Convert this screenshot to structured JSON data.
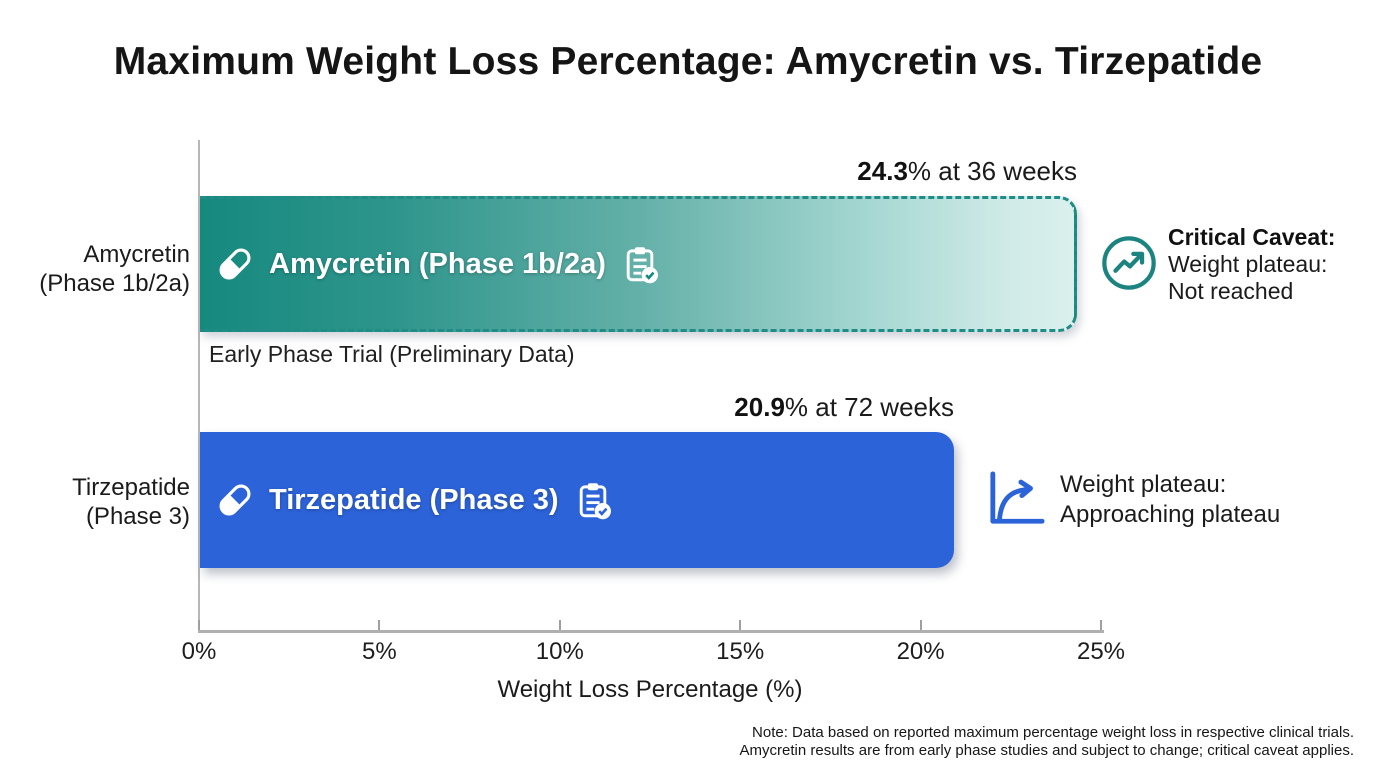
{
  "title": "Maximum Weight Loss Percentage: Amycretin vs. Tirzepatide",
  "chart_data": {
    "type": "bar",
    "orientation": "horizontal",
    "title": "Maximum Weight Loss Percentage: Amycretin vs. Tirzepatide",
    "xlabel": "Weight Loss Percentage (%)",
    "xlim": [
      0,
      25
    ],
    "xtick_labels": [
      "0%",
      "5%",
      "10%",
      "15%",
      "20%",
      "25%"
    ],
    "grid": false,
    "legend": false,
    "bars": [
      {
        "category_line1": "Amycretin",
        "category_line2": "(Phase 1b/2a)",
        "label_in_bar": "Amycretin (Phase 1b/2a)",
        "value": 24.3,
        "value_label_bold": "24.3",
        "value_label_rest": "% at 36 weeks",
        "sub_label": "Early Phase Trial (Preliminary Data)",
        "bar_style": "dashed-outline-gradient",
        "color_start": "#16897e",
        "color_end": "#daf0ed",
        "border_color": "#1f8c86",
        "annotation": {
          "icon": "trending-up-circle-icon",
          "icon_color": "#1b8481",
          "line1": "Critical Caveat:",
          "line2": "Weight plateau:",
          "line3": "Not reached"
        }
      },
      {
        "category_line1": "Tirzepatide",
        "category_line2": "(Phase 3)",
        "label_in_bar": "Tirzepatide (Phase 3)",
        "value": 20.9,
        "value_label_bold": "20.9",
        "value_label_rest": "% at 72 weeks",
        "bar_style": "solid",
        "color": "#2c63d9",
        "annotation": {
          "icon": "plateau-curve-icon",
          "icon_color": "#2b63d9",
          "line1": "Weight plateau:",
          "line2": "Approaching plateau"
        }
      }
    ],
    "note_line1": "Note: Data based on reported maximum percentage weight loss in respective clinical trials.",
    "note_line2": "Amycretin results are from early phase studies and subject to change; critical caveat applies."
  },
  "colors": {
    "teal": "#16897e",
    "teal_border": "#1f8c86",
    "teal_light": "#daf0ed",
    "blue": "#2c63d9",
    "axis_gray": "#b0b0b0",
    "text_dark": "#1d1d1d"
  }
}
